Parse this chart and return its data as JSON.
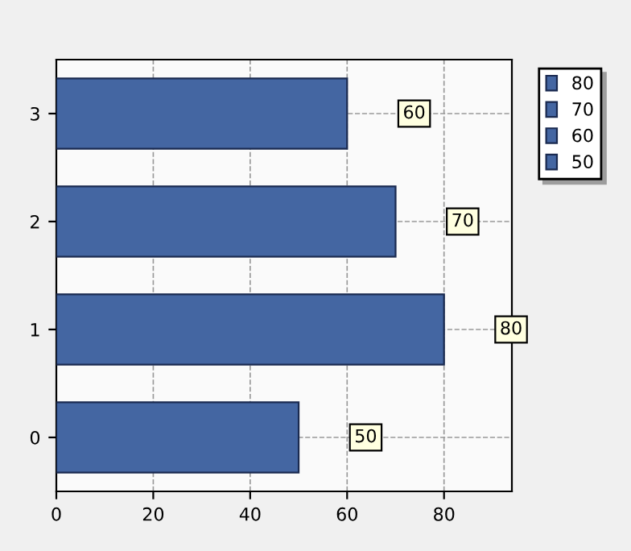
{
  "chart_data": {
    "type": "bar",
    "orientation": "horizontal",
    "categories": [
      "3",
      "2",
      "1",
      "0"
    ],
    "series": [
      {
        "name": "80",
        "color": "#4466a2",
        "values": [
          null,
          null,
          80,
          null
        ]
      },
      {
        "name": "70",
        "color": "#4466a2",
        "values": [
          null,
          70,
          null,
          null
        ]
      },
      {
        "name": "60",
        "color": "#4466a2",
        "values": [
          60,
          null,
          null,
          null
        ]
      },
      {
        "name": "50",
        "color": "#4466a2",
        "values": [
          null,
          null,
          null,
          50
        ]
      }
    ],
    "xlim": [
      0,
      94
    ],
    "xticks": [
      0,
      20,
      40,
      60,
      80
    ],
    "grid": true,
    "legend": "top right",
    "data_labels": true
  }
}
